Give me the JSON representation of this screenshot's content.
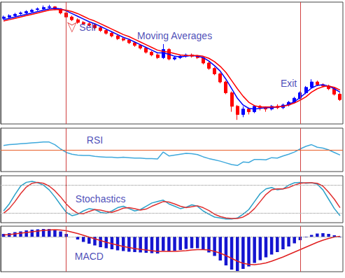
{
  "chart_data": [
    {
      "type": "candlestick",
      "categories": [
        null,
        null,
        null,
        null,
        null,
        null,
        null,
        null,
        null,
        null,
        null,
        null,
        null,
        null,
        null,
        null,
        null,
        null,
        null,
        null,
        null,
        null,
        null,
        null,
        null,
        null,
        null,
        null,
        null,
        null,
        null,
        null,
        null,
        null,
        null,
        null,
        null,
        null,
        null,
        null,
        null,
        null,
        null,
        null,
        null,
        null,
        null,
        null,
        null,
        null,
        null,
        null,
        null,
        null,
        null,
        null,
        null,
        null,
        null,
        null
      ],
      "ylim": [
        5,
        95
      ],
      "yticks": [],
      "grid": false,
      "tick_labels": false,
      "series": [
        {
          "type": "candlestick",
          "values": [
            [
              83,
              85,
              82,
              84
            ],
            [
              84,
              86,
              83,
              85
            ],
            [
              85,
              87,
              84,
              86
            ],
            [
              86.5,
              88,
              85.5,
              87
            ],
            [
              87,
              89,
              86,
              88
            ],
            [
              88,
              90,
              87,
              89
            ],
            [
              89.5,
              91,
              88.5,
              90
            ],
            [
              90,
              92.5,
              89,
              91
            ],
            [
              91,
              93,
              90,
              91.5
            ],
            [
              91.5,
              92,
              89,
              90
            ],
            [
              90,
              90.5,
              86,
              87
            ],
            [
              87,
              87.5,
              83,
              84
            ],
            [
              84,
              85,
              81,
              82
            ],
            [
              82,
              83,
              79,
              80
            ],
            [
              80,
              81,
              78,
              79
            ],
            [
              79,
              80,
              77,
              78
            ],
            [
              78,
              78.5,
              75,
              76
            ],
            [
              76,
              77,
              73,
              74
            ],
            [
              74,
              75,
              71,
              72
            ],
            [
              72,
              73,
              69,
              70
            ],
            [
              70,
              71,
              67,
              68
            ],
            [
              68,
              69,
              66,
              67
            ],
            [
              67,
              68,
              64,
              65
            ],
            [
              65,
              66,
              62,
              63
            ],
            [
              63,
              64,
              60,
              61
            ],
            [
              61,
              62,
              57,
              58
            ],
            [
              58,
              59,
              55,
              56
            ],
            [
              56,
              57,
              53,
              54
            ],
            [
              54,
              64,
              53,
              60
            ],
            [
              60,
              61,
              52,
              53
            ],
            [
              53,
              55,
              52,
              54
            ],
            [
              54,
              56,
              53,
              55
            ],
            [
              55,
              57,
              54,
              56
            ],
            [
              56,
              57,
              54,
              55
            ],
            [
              55,
              56,
              53,
              54
            ],
            [
              54,
              54.5,
              49,
              50
            ],
            [
              50,
              51,
              45,
              46
            ],
            [
              46,
              47,
              41,
              42
            ],
            [
              42,
              43,
              35,
              36
            ],
            [
              36,
              37,
              27,
              28
            ],
            [
              28,
              29,
              14,
              18
            ],
            [
              18,
              19,
              8,
              12
            ],
            [
              12,
              18,
              10,
              16
            ],
            [
              16,
              17,
              12,
              14
            ],
            [
              14,
              19,
              13,
              18
            ],
            [
              18,
              19,
              15,
              17
            ],
            [
              17,
              18,
              14,
              16
            ],
            [
              16,
              19,
              15,
              18
            ],
            [
              18,
              19.5,
              16,
              17
            ],
            [
              17,
              20,
              16,
              19
            ],
            [
              19,
              22,
              18,
              21
            ],
            [
              21,
              25,
              20,
              24
            ],
            [
              24,
              29,
              23,
              28
            ],
            [
              28,
              33,
              27,
              32
            ],
            [
              32,
              38,
              31,
              36
            ],
            [
              36,
              37,
              33,
              34
            ],
            [
              34,
              35,
              32,
              33
            ],
            [
              33,
              34,
              30,
              31
            ],
            [
              31,
              32,
              26,
              27
            ],
            [
              27,
              28,
              22,
              23
            ]
          ]
        },
        {
          "type": "line",
          "color": "#0000ff",
          "values": [
            82,
            83,
            84,
            85,
            86,
            87,
            88,
            89,
            90,
            90.5,
            90,
            88.5,
            86.5,
            84.5,
            82.5,
            80.5,
            79,
            77,
            75,
            73,
            71,
            69,
            67.5,
            65.5,
            63.5,
            61.5,
            59.5,
            57.5,
            57.5,
            56.5,
            55,
            54.5,
            55,
            55.5,
            55,
            54,
            51.5,
            48,
            44,
            38,
            31,
            24,
            19,
            16.5,
            16,
            16.5,
            17,
            17,
            17.5,
            18,
            19.5,
            21.5,
            24.5,
            28,
            31.5,
            33.5,
            34,
            33,
            31,
            28.5
          ]
        },
        {
          "type": "line",
          "color": "#ff0000",
          "values": [
            81,
            82,
            83,
            84,
            85,
            86,
            87,
            88,
            89,
            89.5,
            89.5,
            89,
            88,
            86.5,
            84.5,
            82.5,
            81,
            79,
            77,
            75,
            73,
            71,
            69.5,
            67.5,
            65.5,
            63.5,
            61.5,
            59.5,
            58.5,
            58,
            57,
            56,
            55.5,
            55.5,
            55.5,
            55,
            53.5,
            51,
            47.5,
            43,
            37,
            31,
            25.5,
            21,
            18.5,
            17.5,
            17.5,
            17.5,
            17.5,
            18,
            19,
            20.5,
            22.5,
            25,
            28.5,
            31,
            32.5,
            33,
            32,
            30
          ]
        }
      ],
      "vlines": [
        11,
        52
      ],
      "annotations": [
        {
          "text": "Sell",
          "x": 12,
          "y": 73,
          "marker": "arrow"
        },
        {
          "text": "Moving Averages",
          "x": 30,
          "y": 70
        },
        {
          "text": "Exit",
          "x": 50,
          "y": 35
        }
      ]
    },
    {
      "type": "line",
      "categories": [
        null,
        null,
        null,
        null,
        null,
        null,
        null,
        null,
        null,
        null,
        null,
        null,
        null,
        null,
        null,
        null,
        null,
        null,
        null,
        null,
        null,
        null,
        null,
        null,
        null,
        null,
        null,
        null,
        null,
        null,
        null,
        null,
        null,
        null,
        null,
        null,
        null,
        null,
        null,
        null,
        null,
        null,
        null,
        null,
        null,
        null,
        null,
        null,
        null,
        null,
        null,
        null,
        null,
        null,
        null,
        null,
        null,
        null,
        null,
        null
      ],
      "ylim": [
        0,
        100
      ],
      "yticks": [
        50
      ],
      "grid": true,
      "tick_labels": false,
      "series": [
        {
          "type": "line",
          "color": "#3fa9dc",
          "values": [
            60,
            62,
            63,
            64,
            65,
            66,
            67,
            68,
            68,
            62,
            52,
            44,
            40,
            38,
            37,
            37,
            35,
            34,
            33,
            33,
            32,
            33,
            32,
            31,
            31,
            30,
            30,
            29,
            45,
            36,
            38,
            40,
            42,
            41,
            39,
            34,
            30,
            27,
            24,
            20,
            16,
            14,
            22,
            21,
            28,
            28,
            27,
            32,
            31,
            36,
            40,
            45,
            52,
            58,
            62,
            56,
            54,
            50,
            44,
            38
          ]
        }
      ],
      "vlines": [
        11,
        52
      ],
      "annotations": [
        {
          "text": "RSI",
          "x": 16,
          "y": 73
        }
      ]
    },
    {
      "type": "line",
      "categories": [
        null,
        null,
        null,
        null,
        null,
        null,
        null,
        null,
        null,
        null,
        null,
        null,
        null,
        null,
        null,
        null,
        null,
        null,
        null,
        null,
        null,
        null,
        null,
        null,
        null,
        null,
        null,
        null,
        null,
        null,
        null,
        null,
        null,
        null,
        null,
        null,
        null,
        null,
        null,
        null,
        null,
        null,
        null,
        null,
        null,
        null,
        null,
        null,
        null,
        null,
        null,
        null,
        null,
        null,
        null,
        null,
        null,
        null,
        null,
        null
      ],
      "ylim": [
        0,
        100
      ],
      "yticks": [
        20,
        80
      ],
      "grid": true,
      "tick_labels": false,
      "series": [
        {
          "type": "line",
          "color": "#2aa0c8",
          "values": [
            25,
            40,
            60,
            78,
            86,
            88,
            85,
            80,
            70,
            55,
            38,
            22,
            15,
            18,
            25,
            30,
            28,
            22,
            20,
            25,
            32,
            35,
            30,
            25,
            28,
            35,
            42,
            45,
            48,
            40,
            35,
            30,
            33,
            38,
            35,
            25,
            18,
            12,
            10,
            8,
            8,
            10,
            18,
            28,
            45,
            62,
            72,
            75,
            70,
            72,
            80,
            85,
            86,
            84,
            85,
            82,
            70,
            50,
            30,
            15
          ]
        },
        {
          "type": "line",
          "color": "#e03030",
          "values": [
            20,
            30,
            45,
            62,
            76,
            84,
            86,
            84,
            78,
            68,
            55,
            40,
            28,
            20,
            19,
            24,
            28,
            27,
            24,
            22,
            26,
            31,
            32,
            30,
            27,
            29,
            35,
            40,
            45,
            44,
            40,
            35,
            32,
            34,
            36,
            32,
            26,
            18,
            13,
            10,
            9,
            9,
            12,
            19,
            30,
            45,
            60,
            70,
            72,
            72,
            75,
            80,
            84,
            85,
            85,
            84,
            78,
            65,
            50,
            32
          ]
        }
      ],
      "vlines": [
        11,
        52
      ],
      "annotations": [
        {
          "text": "Stochastics",
          "x": 17,
          "y": 51
        }
      ]
    },
    {
      "type": "bar",
      "categories": [
        null,
        null,
        null,
        null,
        null,
        null,
        null,
        null,
        null,
        null,
        null,
        null,
        null,
        null,
        null,
        null,
        null,
        null,
        null,
        null,
        null,
        null,
        null,
        null,
        null,
        null,
        null,
        null,
        null,
        null,
        null,
        null,
        null,
        null,
        null,
        null,
        null,
        null,
        null,
        null,
        null,
        null,
        null,
        null,
        null,
        null,
        null,
        null,
        null,
        null,
        null,
        null,
        null,
        null,
        null,
        null,
        null,
        null,
        null,
        null
      ],
      "ylim": [
        -10,
        3
      ],
      "yticks": [
        0
      ],
      "grid": true,
      "tick_labels": false,
      "series": [
        {
          "type": "bar",
          "color": "#1515d0",
          "values": [
            0.8,
            1.0,
            1.3,
            1.5,
            1.8,
            2.0,
            2.1,
            2.2,
            2.2,
            2.0,
            1.5,
            0.8,
            0.0,
            -0.8,
            -1.5,
            -2.0,
            -2.5,
            -3.0,
            -3.3,
            -3.6,
            -3.9,
            -4.1,
            -4.3,
            -4.4,
            -4.5,
            -4.6,
            -4.7,
            -4.8,
            -4.0,
            -4.2,
            -4.0,
            -3.8,
            -3.5,
            -3.3,
            -3.3,
            -3.7,
            -4.5,
            -5.5,
            -6.8,
            -8.2,
            -9.4,
            -9.8,
            -9.2,
            -8.5,
            -7.5,
            -6.7,
            -5.9,
            -5.1,
            -4.4,
            -3.6,
            -2.8,
            -1.9,
            -1.0,
            -0.2,
            0.5,
            0.9,
            1.0,
            0.8,
            0.4,
            -0.2
          ]
        },
        {
          "type": "line",
          "color": "#e02020",
          "values": [
            0.5,
            0.6,
            0.8,
            1.0,
            1.2,
            1.4,
            1.6,
            1.8,
            1.9,
            2.0,
            1.9,
            1.7,
            1.3,
            0.9,
            0.4,
            -0.1,
            -0.6,
            -1.1,
            -1.6,
            -2.0,
            -2.4,
            -2.8,
            -3.1,
            -3.4,
            -3.6,
            -3.8,
            -4.0,
            -4.2,
            -4.2,
            -4.2,
            -4.2,
            -4.1,
            -4.0,
            -3.8,
            -3.7,
            -3.7,
            -3.8,
            -4.2,
            -4.7,
            -5.4,
            -6.2,
            -7.0,
            -7.6,
            -7.9,
            -8.0,
            -7.8,
            -7.5,
            -7.0,
            -6.4,
            -5.8,
            -5.1,
            -4.4,
            -3.7,
            -3.0,
            -2.3,
            -1.6,
            -1.0,
            -0.5,
            -0.1,
            0.1
          ]
        }
      ],
      "vlines": [
        11,
        52
      ],
      "annotations": [
        {
          "text": "MACD",
          "x": 15,
          "y": -5.5
        }
      ]
    }
  ]
}
